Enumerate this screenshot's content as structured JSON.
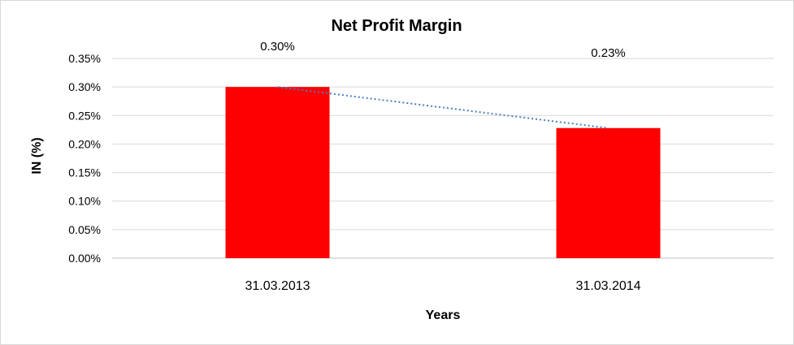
{
  "chart_data": {
    "type": "bar",
    "title": "Net Profit Margin",
    "xlabel": "Years",
    "ylabel": "IN (%)",
    "categories": [
      "31.03.2013",
      "31.03.2014"
    ],
    "series": [
      {
        "values": [
          0.3,
          0.228
        ],
        "color": "#ff0000"
      }
    ],
    "data_labels": [
      "0.30%",
      "0.23%"
    ],
    "ylim": [
      0,
      0.35
    ],
    "yticks": [
      "0.00%",
      "0.05%",
      "0.10%",
      "0.15%",
      "0.20%",
      "0.25%",
      "0.30%",
      "0.35%"
    ],
    "trendline": {
      "type": "linear",
      "style": "dotted",
      "color": "#4a7fc1"
    },
    "grid": true,
    "legend": "none"
  }
}
